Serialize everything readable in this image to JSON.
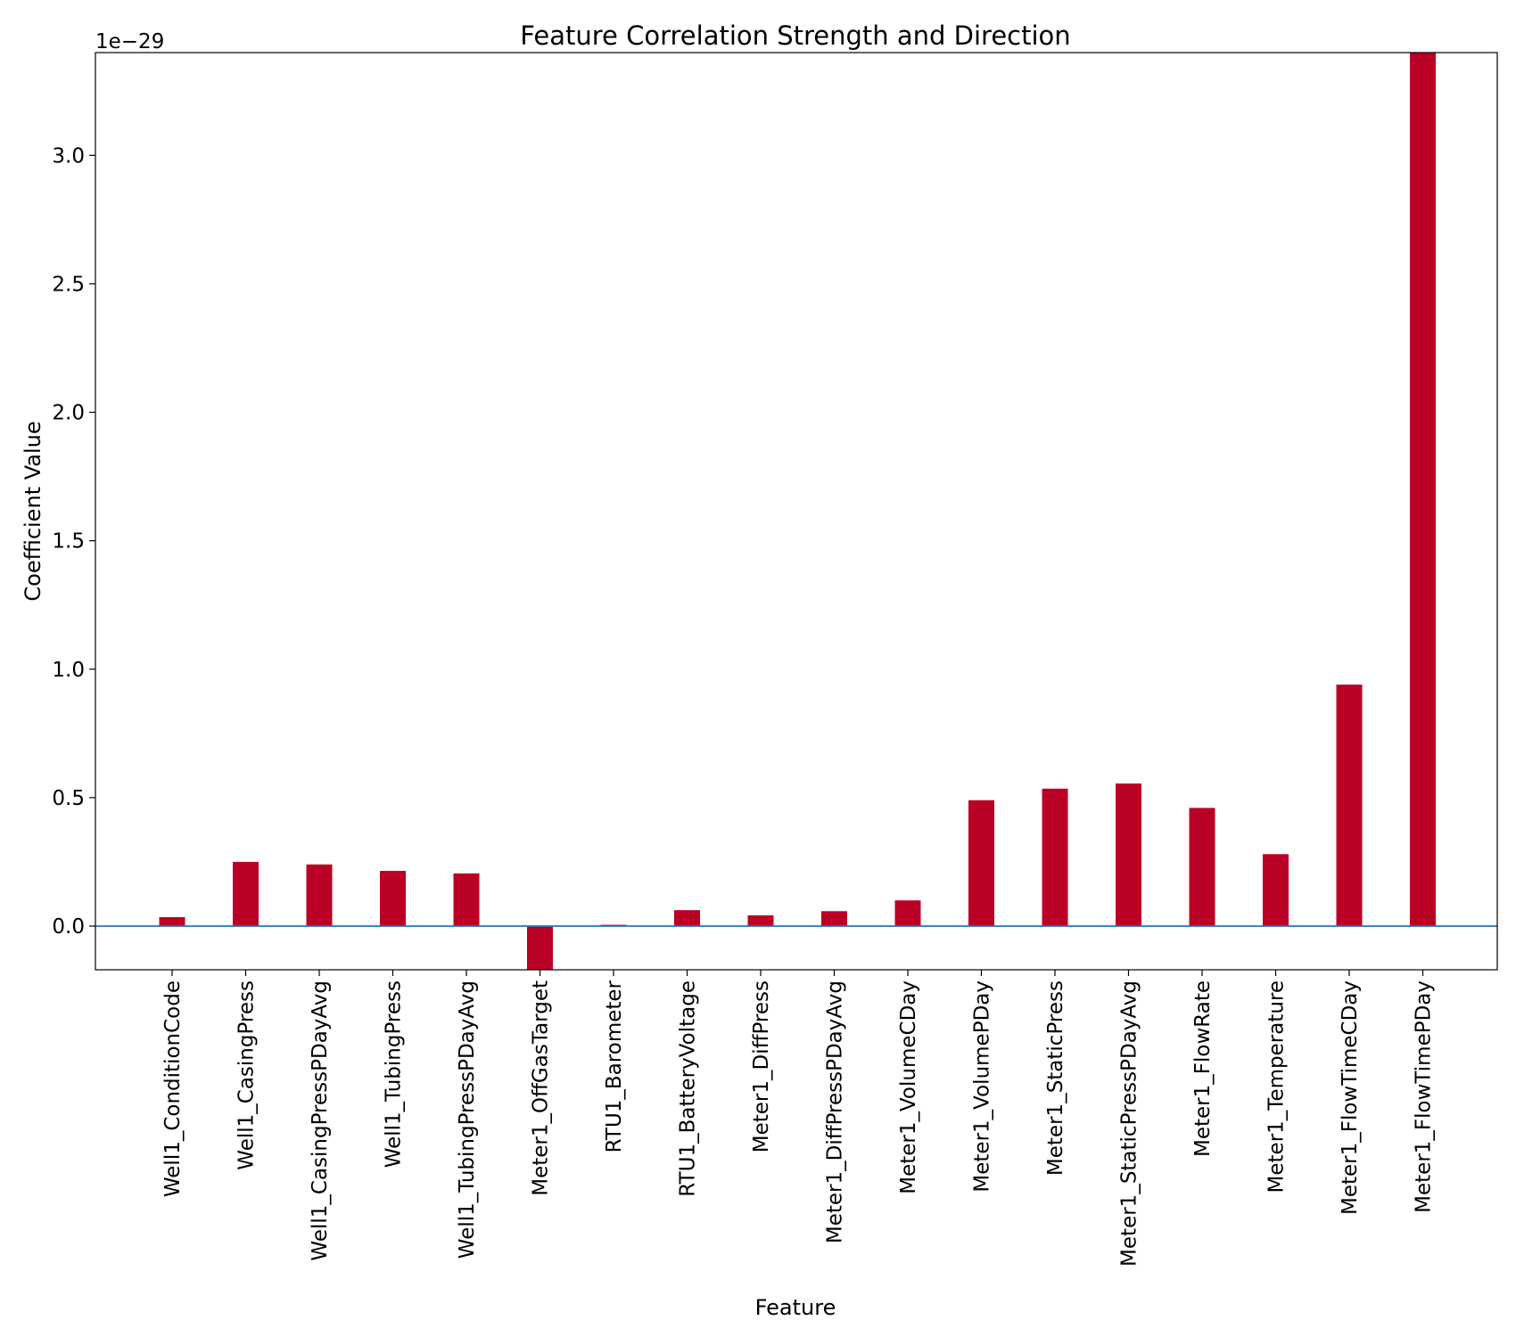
{
  "chart_data": {
    "type": "bar",
    "title": "Feature Correlation Strength and Direction",
    "xlabel": "Feature",
    "ylabel": "Coefficient Value",
    "y_offset_text": "1e−29",
    "y_scale_exponent": -29,
    "ylim": [
      -0.17,
      3.4
    ],
    "yticks": [
      0.0,
      0.5,
      1.0,
      1.5,
      2.0,
      2.5,
      3.0
    ],
    "ytick_labels": [
      "0.0",
      "0.5",
      "1.0",
      "1.5",
      "2.0",
      "2.5",
      "3.0"
    ],
    "grid": false,
    "legend": "none",
    "bar_color": "#bb0026",
    "zero_line_color": "#1f77b4",
    "categories": [
      "Well1_ConditionCode",
      "Well1_CasingPress",
      "Well1_CasingPressPDayAvg",
      "Well1_TubingPress",
      "Well1_TubingPressPDayAvg",
      "Meter1_OffGasTarget",
      "RTU1_Barometer",
      "RTU1_BatteryVoltage",
      "Meter1_DiffPress",
      "Meter1_DiffPressPDayAvg",
      "Meter1_VolumeCDay",
      "Meter1_VolumePDay",
      "Meter1_StaticPress",
      "Meter1_StaticPressPDayAvg",
      "Meter1_FlowRate",
      "Meter1_Temperature",
      "Meter1_FlowTimeCDay",
      "Meter1_FlowTimePDay"
    ],
    "values": [
      0.035,
      0.25,
      0.24,
      0.215,
      0.205,
      -0.17,
      0.005,
      0.062,
      0.042,
      0.058,
      0.1,
      0.49,
      0.535,
      0.555,
      0.46,
      0.28,
      0.94,
      3.4
    ]
  }
}
